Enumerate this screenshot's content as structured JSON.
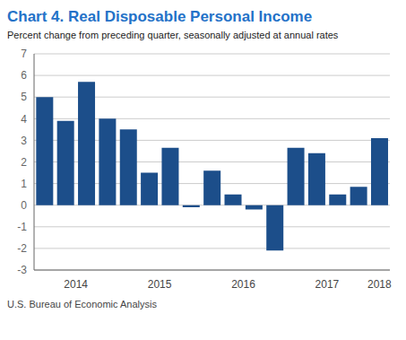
{
  "chart_data": {
    "type": "bar",
    "title": "Chart 4. Real Disposable Personal Income",
    "subtitle": "Percent change from preceding quarter, seasonally adjusted at annual rates",
    "annotations": [
      "U.S. Bureau of Economic Analysis"
    ],
    "categories": [
      null,
      "2014",
      null,
      null,
      null,
      "2015",
      null,
      null,
      null,
      "2016",
      null,
      null,
      null,
      "2017",
      null,
      null,
      "2018"
    ],
    "values": [
      5.0,
      3.9,
      5.7,
      4.0,
      3.5,
      1.5,
      2.65,
      -0.1,
      1.6,
      0.5,
      -0.2,
      -2.1,
      2.65,
      2.4,
      0.5,
      0.85,
      3.1
    ],
    "color": "#1C4E8A",
    "ylim": [
      -3,
      7
    ],
    "yticks": [
      -3,
      -2,
      -1,
      0,
      1,
      2,
      3,
      4,
      5,
      6,
      7
    ],
    "grid": true
  }
}
